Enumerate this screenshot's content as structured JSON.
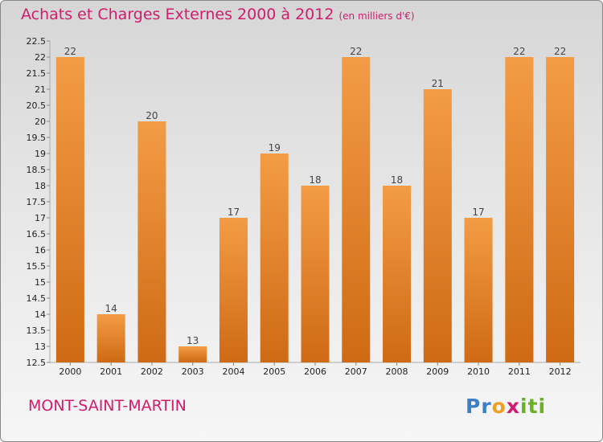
{
  "title": "Achats et Charges Externes 2000 à 2012",
  "unit": "(en milliers d'€)",
  "location": "MONT-SAINT-MARTIN",
  "logo": {
    "letters": [
      "P",
      "r",
      "o",
      "x",
      "i",
      "t",
      "i"
    ],
    "colors": [
      "#3b7fc4",
      "#3b7fc4",
      "#f0a020",
      "#d11c6e",
      "#6ab023",
      "#6ab023",
      "#6ab023"
    ]
  },
  "colors": {
    "bar": "#f39c45",
    "bar_dark": "#cf6a14",
    "accent": "#d11c6e"
  },
  "chart_data": {
    "type": "bar",
    "categories": [
      "2000",
      "2001",
      "2002",
      "2003",
      "2004",
      "2005",
      "2006",
      "2007",
      "2008",
      "2009",
      "2010",
      "2011",
      "2012"
    ],
    "values": [
      22,
      14,
      20,
      13,
      17,
      19,
      18,
      22,
      18,
      21,
      17,
      22,
      22
    ],
    "ylim": [
      12.5,
      22.5
    ],
    "yticks": [
      "12.5",
      "13",
      "13.5",
      "14",
      "14.5",
      "15",
      "15.5",
      "16",
      "16.5",
      "17",
      "17.5",
      "18",
      "18.5",
      "19",
      "19.5",
      "20",
      "20.5",
      "21",
      "21.5",
      "22",
      "22.5"
    ],
    "grid": false
  }
}
